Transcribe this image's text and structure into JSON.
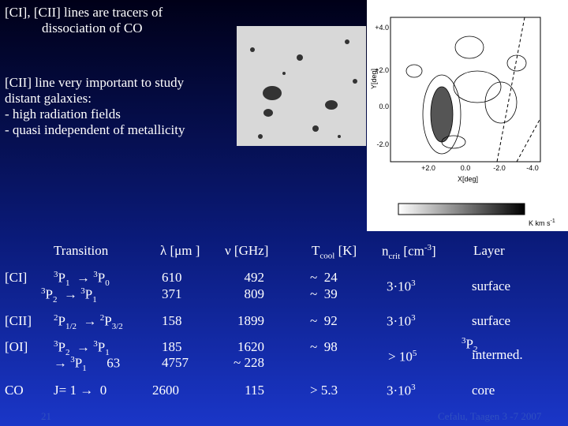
{
  "intro": {
    "lines": [
      "[CI], [CII] lines are tracers of",
      "dissociation of CO"
    ]
  },
  "points": {
    "lines": [
      "[CII] line very important to study",
      "distant galaxies:",
      "- high radiation fields",
      "- quasi independent of metallicity"
    ]
  },
  "map": {
    "y_label": "Y[deg]",
    "x_label": "X[deg]",
    "y_ticks": [
      "+4.0",
      "+2.0",
      "0.0",
      "-2.0"
    ],
    "x_ticks": [
      "+2.0",
      "0.0",
      "-2.0",
      "-4.0"
    ],
    "unit": {
      "base": "K km s",
      "sup": "-1"
    }
  },
  "table": {
    "header": {
      "transition": "Transition",
      "lambda": "λ [μm ]",
      "nu": "ν [GHz]",
      "tcool": {
        "base": "T",
        "sub": "cool",
        "tail": " [K]"
      },
      "ncrit": {
        "base": "n",
        "sub": "crit",
        "mid": " [cm",
        "sup": "-3",
        "tail": "]"
      },
      "layer": "Layer"
    },
    "arrow": "→",
    "rows": [
      {
        "species": "[CI]",
        "transitions": [
          {
            "from": {
              "sup": "3",
              "base": "P",
              "sub": "1"
            },
            "to": {
              "sup": "3",
              "base": "P",
              "sub": "0"
            }
          },
          {
            "from": {
              "sup": "3",
              "base": "P",
              "sub": "2"
            },
            "to": {
              "sup": "3",
              "base": "P",
              "sub": "1"
            }
          }
        ],
        "lambda": [
          "610",
          "371"
        ],
        "nu": [
          "492",
          "809"
        ],
        "tcool": [
          "~  24",
          "~  39"
        ],
        "ncrit": {
          "base": "3·10",
          "sup": "3"
        },
        "layer": "surface"
      },
      {
        "species": "[CII]",
        "transitions": [
          {
            "from": {
              "sup": "2",
              "base": "P",
              "sub": "1/2"
            },
            "to": {
              "sup": "2",
              "base": "P",
              "sub": "3/2"
            }
          }
        ],
        "lambda": [
          "158"
        ],
        "nu": [
          "1899"
        ],
        "tcool": [
          "~  92"
        ],
        "ncrit": {
          "base": "3·10",
          "sup": "3"
        },
        "layer": "surface"
      },
      {
        "species": "[OI]",
        "transitions": [
          {
            "from": {
              "sup": "3",
              "base": "P",
              "sub": "2"
            },
            "to": {
              "sup": "3",
              "base": "P",
              "sub": "1"
            }
          },
          {
            "to": {
              "sup": "3",
              "base": "P",
              "sub": "1"
            },
            "extra": "63"
          }
        ],
        "lambda": [
          "185",
          "4757"
        ],
        "nu": [
          "1620",
          "~ 228"
        ],
        "tcool": [
          "~  98"
        ],
        "ncrit": {
          "base": "> 10",
          "sup": "5"
        },
        "layer_overlap": {
          "sup": "3",
          "base": "P",
          "sub": "2"
        },
        "layer": "intermed."
      },
      {
        "species": "CO",
        "transition_text": "J= 1",
        "transition_end": "0",
        "lambda": [
          "2600"
        ],
        "nu": [
          "115"
        ],
        "tcool": [
          "> 5.3"
        ],
        "ncrit": {
          "base": "3·10",
          "sup": "3"
        },
        "layer": "core"
      }
    ]
  },
  "footer": {
    "page": "21",
    "credit": "Cefalu, Taagen 3 -7 2007"
  }
}
